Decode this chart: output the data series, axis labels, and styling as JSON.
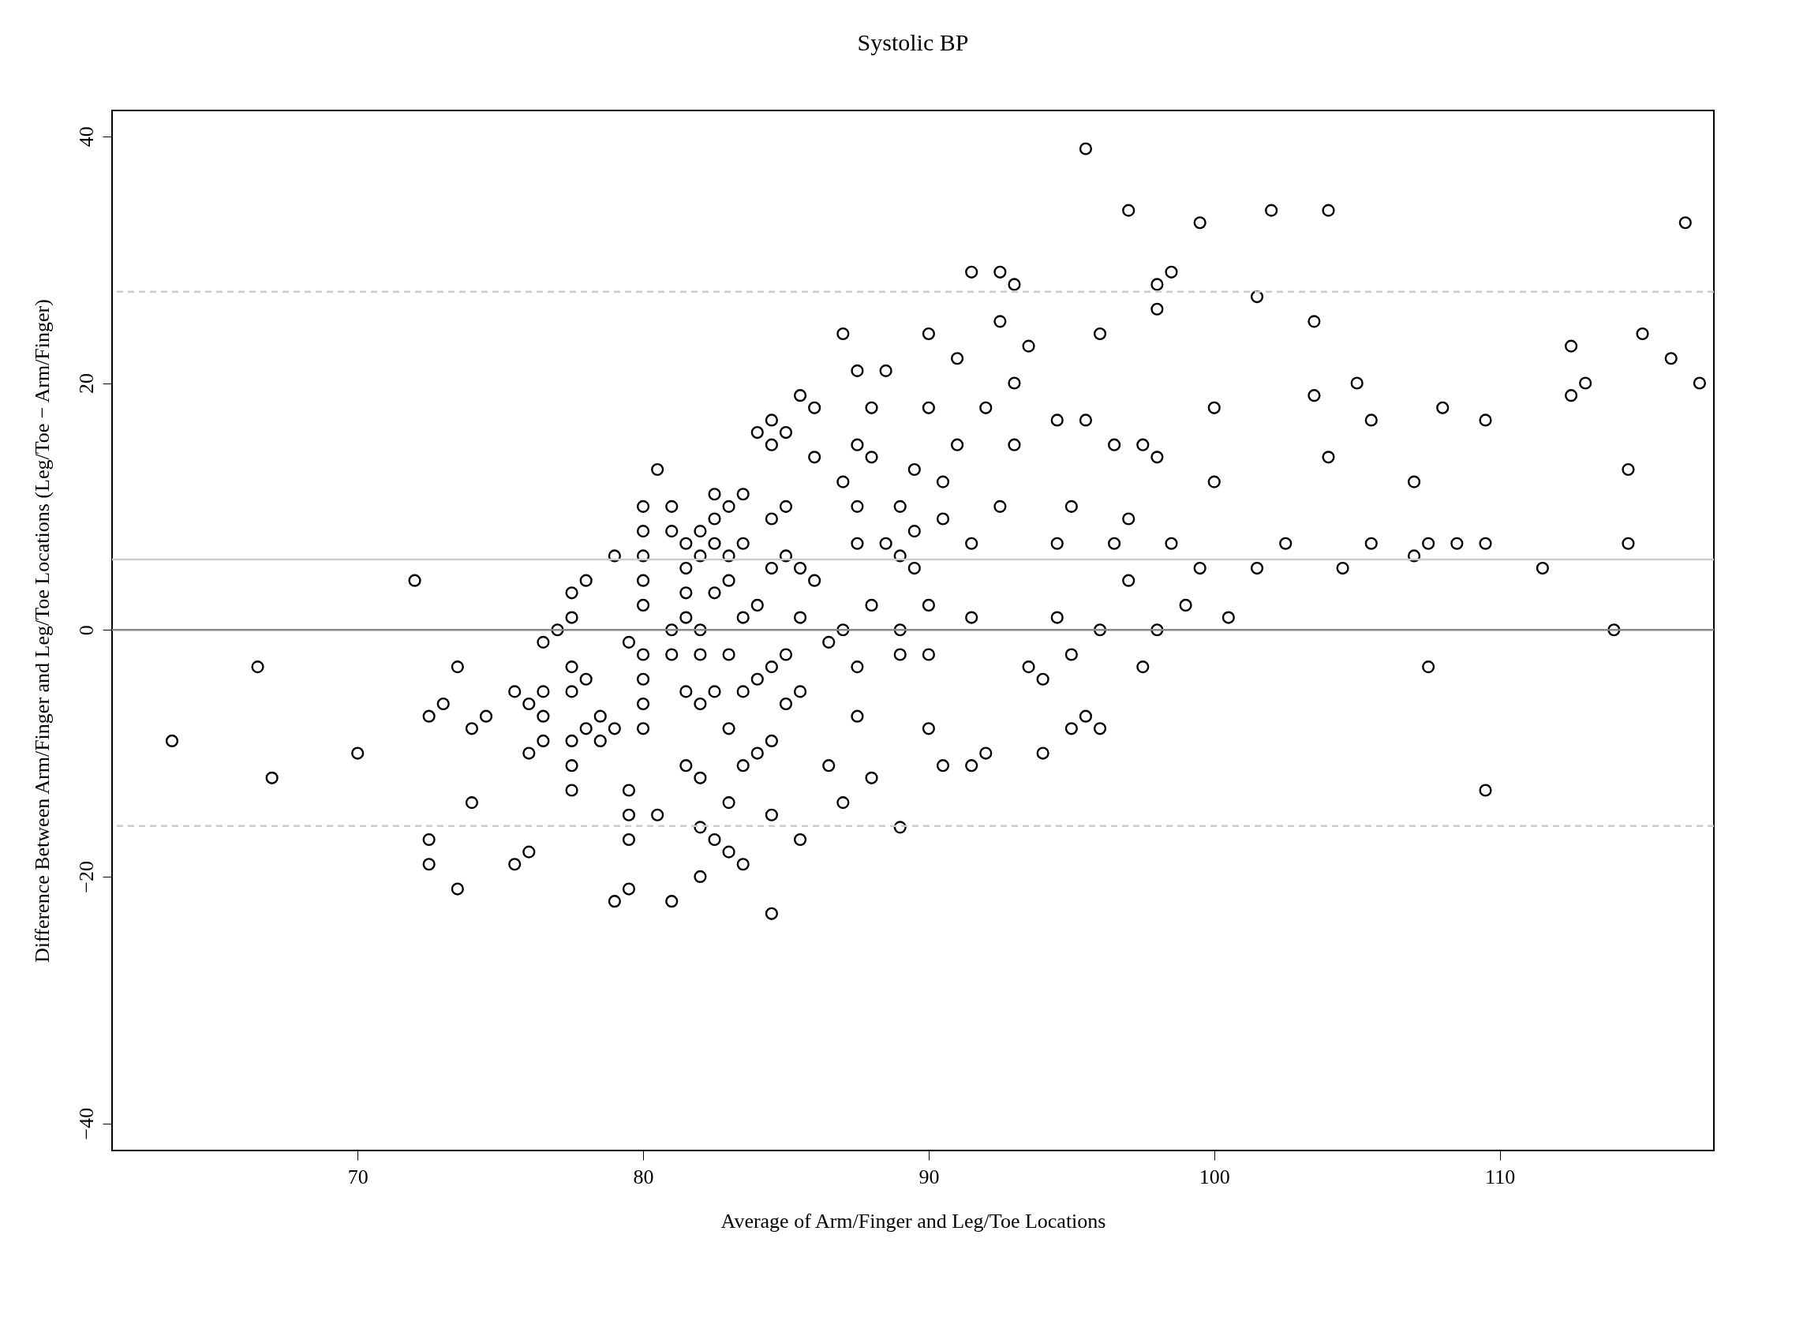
{
  "chart_data": {
    "type": "scatter",
    "title": "Systolic BP",
    "xlabel": "Average of Arm/Finger and Leg/Toe Locations",
    "ylabel": "Difference Between Arm/Finger and Leg/Toe Locations (Leg/Toe − Arm/Finger)",
    "xlim": [
      61.4,
      117.5
    ],
    "ylim": [
      -42.2,
      42.1
    ],
    "xticks": [
      70,
      80,
      90,
      100,
      110
    ],
    "yticks": [
      -40,
      -20,
      0,
      20,
      40
    ],
    "grid": false,
    "marker": "circle",
    "ref_lines": [
      {
        "axis": "y",
        "value": 0,
        "color": "#888888",
        "line_style": "solid"
      },
      {
        "axis": "y",
        "value": 5.7,
        "color": "#cccccc",
        "line_style": "solid"
      },
      {
        "axis": "y",
        "value": 27.4,
        "color": "#cccccc",
        "line_style": "dashed"
      },
      {
        "axis": "y",
        "value": -15.9,
        "color": "#cccccc",
        "line_style": "dashed"
      }
    ],
    "series": [
      {
        "color": "#000000",
        "x": [
          63.5,
          66.5,
          67,
          70,
          72,
          72.5,
          72.5,
          72.5,
          73,
          73.5,
          73.5,
          74,
          74,
          74.5,
          75.5,
          75.5,
          76,
          76,
          76,
          76.5,
          76.5,
          76.5,
          76.5,
          77,
          77.5,
          77.5,
          77.5,
          77.5,
          77.5,
          77.5,
          77.5,
          78,
          78,
          78,
          78.5,
          78.5,
          79,
          79,
          79,
          79.5,
          79.5,
          79.5,
          79.5,
          79.5,
          80,
          80,
          80,
          80,
          80,
          80,
          80,
          80,
          80,
          80.5,
          80.5,
          81,
          81,
          81,
          81,
          81,
          81.5,
          81.5,
          81.5,
          81.5,
          81.5,
          81.5,
          82,
          82,
          82,
          82,
          82,
          82,
          82,
          82,
          82.5,
          82.5,
          82.5,
          82.5,
          82.5,
          82.5,
          83,
          83,
          83,
          83,
          83,
          83,
          83,
          83.5,
          83.5,
          83.5,
          83.5,
          83.5,
          83.5,
          84,
          84,
          84,
          84,
          84.5,
          84.5,
          84.5,
          84.5,
          84.5,
          84.5,
          84.5,
          84.5,
          85,
          85,
          85,
          85,
          85,
          85.5,
          85.5,
          85.5,
          85.5,
          85.5,
          86,
          86,
          86,
          86.5,
          86.5,
          87,
          87,
          87,
          87.5,
          87.5,
          87.5,
          87.5,
          87.5,
          88,
          88,
          88,
          88,
          88.5,
          89,
          89,
          89,
          89,
          89,
          89.5,
          89.5,
          90,
          90,
          90,
          90,
          90.5,
          90.5,
          91,
          91.5,
          91.5,
          91.5,
          92,
          92.5,
          92.5,
          93,
          93,
          93.5,
          93.5,
          94,
          94,
          94.5,
          95,
          95,
          95.5,
          95.5,
          95.5,
          96,
          96,
          96,
          97,
          97,
          97.5,
          98,
          98,
          98,
          98.5,
          99,
          99.5,
          99.5,
          100,
          100,
          100.5,
          101.5,
          101.5,
          102,
          102.5,
          103.5,
          103.5,
          104,
          104,
          104.5,
          105,
          105.5,
          105.5,
          107,
          107,
          107.5,
          107.5,
          108,
          108.5,
          109.5,
          109.5,
          109.5,
          111.5,
          112.5,
          112.5,
          113,
          114,
          114.5,
          114.5,
          115,
          116,
          116.5,
          117,
          90,
          91,
          92,
          93,
          94.5,
          96.5,
          97.5,
          98,
          90.5,
          92.5,
          95,
          97,
          89.5,
          91.5,
          94.5,
          96.5,
          98.5,
          88.5,
          87.5,
          87
        ],
        "values": [
          -9,
          -3,
          -12,
          -10,
          4,
          -7,
          -17,
          -19,
          -6,
          -3,
          -21,
          -8,
          -14,
          -7,
          -5,
          -19,
          -6,
          -10,
          -18,
          -1,
          -5,
          -7,
          -9,
          0,
          3,
          1,
          -3,
          -5,
          -9,
          -11,
          -13,
          4,
          -4,
          -8,
          -7,
          -9,
          6,
          -8,
          -22,
          -1,
          -13,
          -15,
          -17,
          -21,
          10,
          8,
          6,
          4,
          2,
          -2,
          -4,
          -6,
          -8,
          13,
          -15,
          10,
          8,
          0,
          -2,
          -22,
          7,
          5,
          3,
          1,
          -5,
          -11,
          8,
          6,
          0,
          -2,
          -6,
          -12,
          -16,
          -20,
          11,
          9,
          7,
          3,
          -5,
          -17,
          10,
          6,
          4,
          -2,
          -8,
          -14,
          -18,
          11,
          7,
          1,
          -5,
          -11,
          -19,
          16,
          2,
          -4,
          -10,
          17,
          15,
          9,
          5,
          -3,
          -9,
          -15,
          -23,
          16,
          10,
          6,
          -2,
          -6,
          19,
          5,
          1,
          -5,
          -17,
          18,
          14,
          4,
          -1,
          -11,
          24,
          0,
          -14,
          21,
          15,
          7,
          -3,
          -7,
          18,
          14,
          2,
          -12,
          21,
          10,
          6,
          0,
          -2,
          -16,
          13,
          5,
          24,
          2,
          -2,
          -8,
          9,
          -11,
          22,
          29,
          1,
          -11,
          -10,
          29,
          25,
          28,
          20,
          23,
          -3,
          -4,
          -10,
          1,
          -2,
          -8,
          39,
          17,
          -7,
          24,
          -8,
          0,
          34,
          4,
          -3,
          28,
          26,
          0,
          29,
          2,
          33,
          5,
          12,
          18,
          1,
          27,
          5,
          34,
          7,
          25,
          19,
          34,
          14,
          5,
          20,
          17,
          7,
          12,
          6,
          -3,
          7,
          18,
          7,
          17,
          7,
          -13,
          5,
          23,
          19,
          20,
          0,
          13,
          7,
          24,
          22,
          33,
          20,
          18,
          15,
          18,
          15,
          17,
          15,
          15,
          14,
          12,
          10,
          10,
          9,
          8,
          7,
          7,
          7,
          7,
          7,
          10,
          12
        ]
      }
    ]
  }
}
